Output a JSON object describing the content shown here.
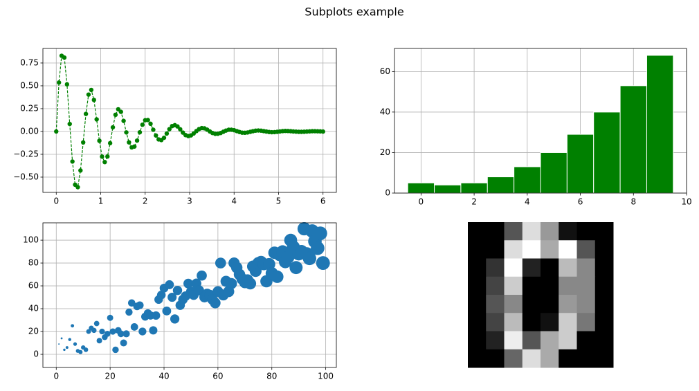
{
  "title": "Subplots example",
  "chart_data": [
    {
      "type": "line",
      "color": "#008000",
      "linestyle": "dashed",
      "marker": "circle",
      "grid": true,
      "x": [
        0,
        0.061,
        0.121,
        0.182,
        0.242,
        0.303,
        0.364,
        0.424,
        0.485,
        0.545,
        0.606,
        0.667,
        0.727,
        0.788,
        0.848,
        0.909,
        0.97,
        1.03,
        1.091,
        1.152,
        1.212,
        1.273,
        1.333,
        1.394,
        1.455,
        1.515,
        1.576,
        1.636,
        1.697,
        1.758,
        1.818,
        1.879,
        1.939,
        2.0,
        2.061,
        2.121,
        2.182,
        2.242,
        2.303,
        2.364,
        2.424,
        2.485,
        2.545,
        2.606,
        2.667,
        2.727,
        2.788,
        2.848,
        2.909,
        2.97,
        3.03,
        3.091,
        3.152,
        3.212,
        3.273,
        3.333,
        3.394,
        3.455,
        3.515,
        3.576,
        3.636,
        3.697,
        3.758,
        3.818,
        3.879,
        3.939,
        4.0,
        4.061,
        4.121,
        4.182,
        4.242,
        4.303,
        4.364,
        4.424,
        4.485,
        4.545,
        4.606,
        4.667,
        4.727,
        4.788,
        4.848,
        4.909,
        4.97,
        5.03,
        5.091,
        5.152,
        5.212,
        5.273,
        5.333,
        5.394,
        5.455,
        5.515,
        5.576,
        5.636,
        5.697,
        5.758,
        5.818,
        5.879,
        5.939,
        6.0
      ],
      "values": [
        0,
        0.536,
        0.829,
        0.809,
        0.516,
        0.082,
        -0.329,
        -0.583,
        -0.61,
        -0.427,
        -0.12,
        0.192,
        0.404,
        0.455,
        0.345,
        0.132,
        -0.102,
        -0.275,
        -0.335,
        -0.274,
        -0.128,
        0.045,
        0.183,
        0.243,
        0.215,
        0.116,
        -0.01,
        -0.119,
        -0.174,
        -0.165,
        -0.1,
        -0.009,
        0.074,
        0.123,
        0.125,
        0.084,
        0.019,
        -0.044,
        -0.087,
        -0.094,
        -0.069,
        -0.023,
        0.025,
        0.059,
        0.069,
        0.055,
        0.024,
        -0.012,
        -0.04,
        -0.05,
        -0.043,
        -0.022,
        0.004,
        0.026,
        0.037,
        0.034,
        0.02,
        0,
        -0.017,
        -0.026,
        -0.025,
        -0.017,
        -0.003,
        0.01,
        0.019,
        0.019,
        0.014,
        0.004,
        -0.006,
        -0.013,
        -0.014,
        -0.011,
        -0.004,
        0.003,
        0.009,
        0.011,
        0.009,
        0.004,
        -0.001,
        -0.006,
        -0.008,
        -0.007,
        -0.004,
        0,
        0.004,
        0.006,
        0.005,
        0.003,
        0,
        -0.002,
        -0.004,
        -0.004,
        -0.003,
        -0.001,
        0.001,
        0.003,
        0.003,
        0.002,
        0.001,
        -0.001
      ],
      "xlim": [
        -0.3,
        6.3
      ],
      "xticks": [
        0,
        1,
        2,
        3,
        4,
        5,
        6
      ],
      "ylim": [
        -0.667,
        0.909
      ],
      "yticks": [
        {
          "value": -0.5,
          "label": "−0.50"
        },
        {
          "value": -0.25,
          "label": "−0.25"
        },
        {
          "value": 0,
          "label": "0.00"
        },
        {
          "value": 0.25,
          "label": "0.25"
        },
        {
          "value": 0.5,
          "label": "0.50"
        },
        {
          "value": 0.75,
          "label": "0.75"
        }
      ]
    },
    {
      "type": "histogram",
      "color": "#008000",
      "edgecolor": "#ffffff",
      "grid": true,
      "bins": [
        -0.5,
        0.5,
        1.5,
        2.5,
        3.5,
        4.5,
        5.5,
        6.5,
        7.5,
        8.5,
        9.5
      ],
      "values": [
        5,
        4,
        5,
        8,
        13,
        20,
        29,
        40,
        53,
        68
      ],
      "xlim": [
        -1,
        10
      ],
      "xticks": [
        0,
        2,
        4,
        6,
        8,
        10
      ],
      "ylim": [
        0,
        71.4
      ],
      "yticks": [
        0,
        20,
        40,
        60
      ]
    },
    {
      "type": "scatter",
      "color": "#1f77b4",
      "grid": true,
      "x": [
        0,
        1,
        2,
        3,
        4,
        5,
        6,
        7,
        8,
        9,
        10,
        11,
        12,
        13,
        14,
        15,
        16,
        17,
        18,
        19,
        20,
        21,
        22,
        23,
        24,
        25,
        26,
        27,
        28,
        29,
        30,
        31,
        32,
        33,
        34,
        35,
        36,
        37,
        38,
        39,
        40,
        41,
        42,
        43,
        44,
        45,
        46,
        47,
        48,
        49,
        50,
        51,
        52,
        53,
        54,
        55,
        56,
        57,
        58,
        59,
        60,
        61,
        62,
        63,
        64,
        65,
        66,
        67,
        68,
        69,
        70,
        71,
        72,
        73,
        74,
        75,
        76,
        77,
        78,
        79,
        80,
        81,
        82,
        83,
        84,
        85,
        86,
        87,
        88,
        89,
        90,
        91,
        92,
        93,
        94,
        95,
        96,
        97,
        98,
        99
      ],
      "values": [
        0,
        9,
        14,
        4,
        6,
        13,
        25,
        9,
        3,
        2,
        6,
        4,
        20,
        23,
        21,
        27,
        12,
        20,
        15,
        18,
        32,
        20,
        4,
        21,
        18,
        10,
        18,
        37,
        45,
        24,
        42,
        43,
        20,
        33,
        36,
        34,
        21,
        34,
        48,
        52,
        58,
        38,
        61,
        50,
        31,
        56,
        43,
        48,
        51,
        62,
        55,
        52,
        62,
        56,
        69,
        50,
        53,
        52,
        48,
        45,
        55,
        80,
        52,
        64,
        55,
        62,
        80,
        76,
        70,
        66,
        63,
        65,
        62,
        77,
        73,
        80,
        81,
        79,
        64,
        79,
        71,
        89,
        68,
        87,
        90,
        81,
        85,
        100,
        94,
        76,
        88,
        90,
        110,
        88,
        84,
        108,
        99,
        93,
        106,
        80
      ],
      "sizes": [
        0,
        1,
        2,
        3,
        4,
        5,
        6,
        7,
        8,
        9,
        10,
        11,
        12,
        13,
        14,
        15,
        16,
        17,
        18,
        19,
        20,
        21,
        22,
        23,
        24,
        25,
        26,
        27,
        28,
        29,
        30,
        31,
        32,
        33,
        34,
        35,
        36,
        37,
        38,
        39,
        40,
        41,
        42,
        43,
        44,
        45,
        46,
        47,
        48,
        49,
        50,
        51,
        52,
        53,
        54,
        55,
        56,
        57,
        58,
        59,
        60,
        61,
        62,
        63,
        64,
        65,
        66,
        67,
        68,
        69,
        70,
        71,
        72,
        73,
        74,
        75,
        76,
        77,
        78,
        79,
        80,
        81,
        82,
        83,
        84,
        85,
        86,
        87,
        88,
        89,
        90,
        91,
        92,
        93,
        94,
        95,
        96,
        97,
        98,
        99
      ],
      "xlim": [
        -4.95,
        103.95
      ],
      "xticks": [
        0,
        20,
        40,
        60,
        80,
        100
      ],
      "ylim": [
        -11.5,
        115.2
      ],
      "yticks": [
        0,
        20,
        40,
        60,
        80,
        100
      ]
    },
    {
      "type": "image",
      "cmap": "gray",
      "image": [
        [
          0,
          0,
          5,
          13,
          9,
          1,
          0,
          0
        ],
        [
          0,
          0,
          13,
          15,
          10,
          15,
          5,
          0
        ],
        [
          0,
          3,
          15,
          2,
          0,
          11,
          8,
          0
        ],
        [
          0,
          4,
          12,
          0,
          0,
          8,
          8,
          0
        ],
        [
          0,
          5,
          8,
          0,
          0,
          9,
          8,
          0
        ],
        [
          0,
          4,
          11,
          0,
          1,
          12,
          7,
          0
        ],
        [
          0,
          2,
          14,
          5,
          10,
          12,
          0,
          0
        ],
        [
          0,
          0,
          6,
          13,
          10,
          0,
          0,
          0
        ]
      ]
    }
  ]
}
